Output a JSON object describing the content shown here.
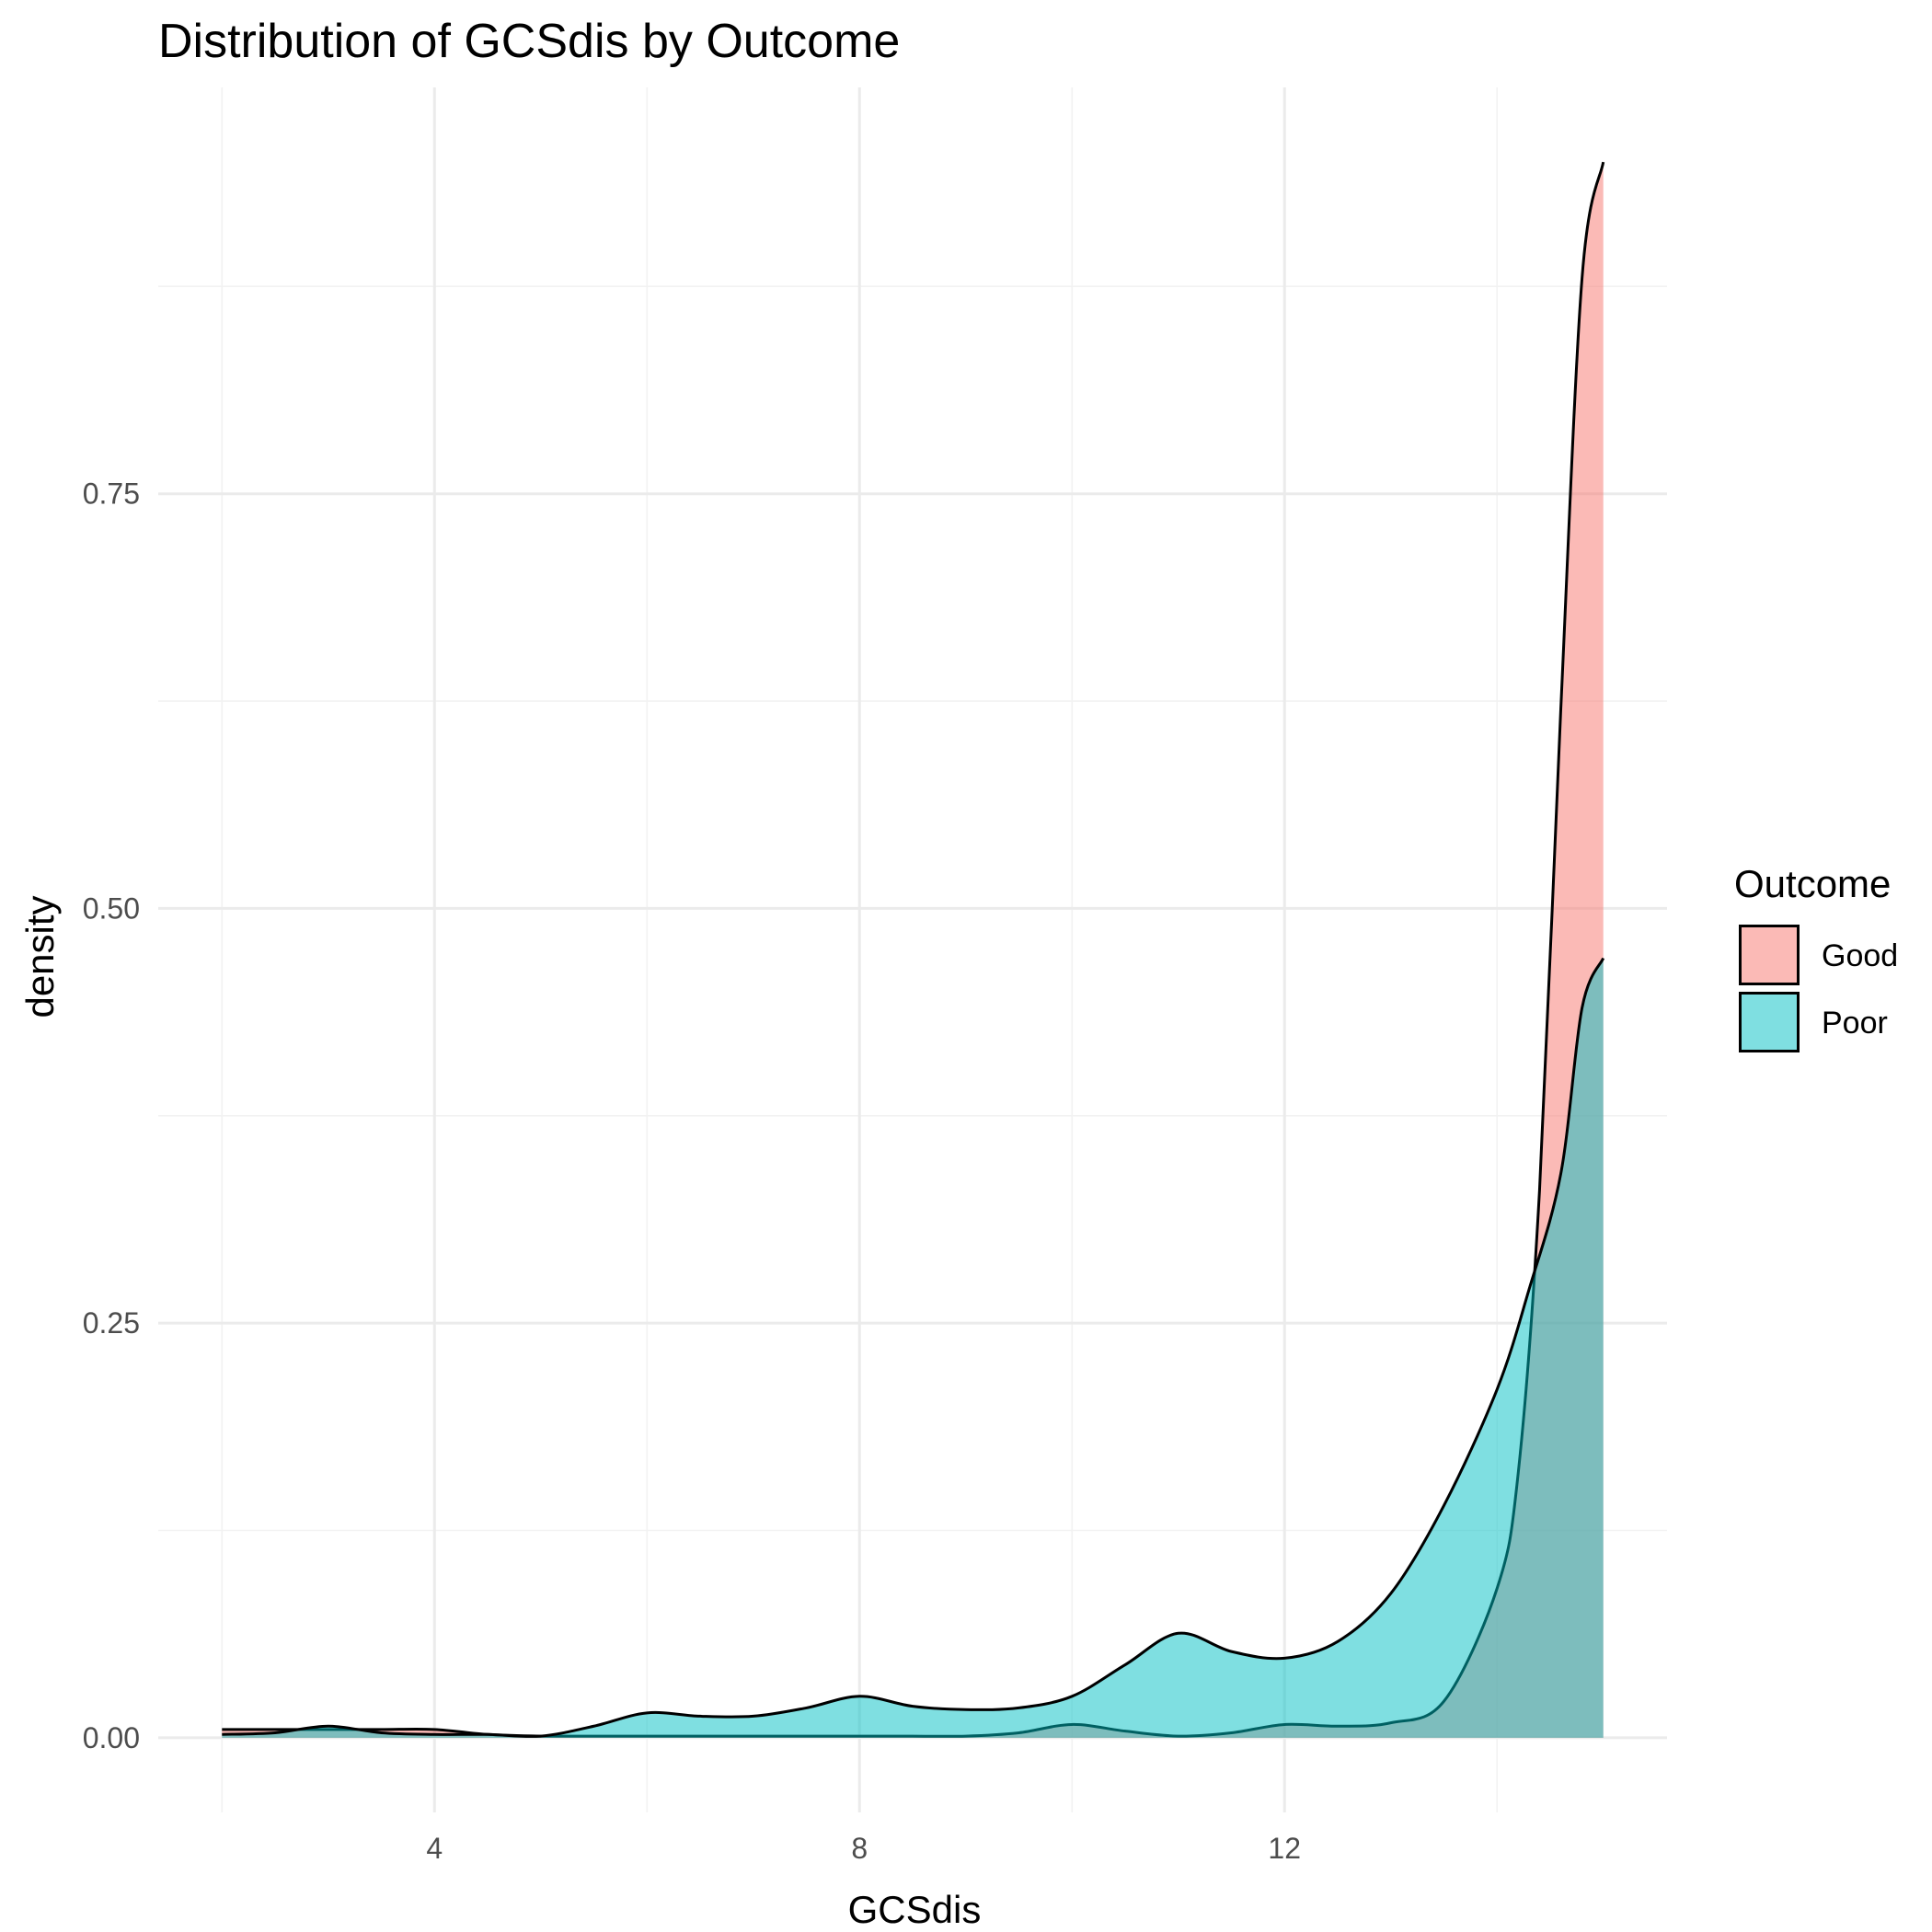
{
  "chart_data": {
    "type": "area",
    "title": "Distribution of GCSdis by Outcome",
    "xlabel": "GCSdis",
    "ylabel": "density",
    "xlim": [
      1.4,
      15.6
    ],
    "ylim": [
      -0.045,
      0.995
    ],
    "x_ticks": [
      4,
      8,
      12
    ],
    "x_tick_labels": [
      "4",
      "8",
      "12"
    ],
    "y_ticks": [
      0,
      0.25,
      0.5,
      0.75
    ],
    "y_tick_labels": [
      "0.00",
      "0.25",
      "0.50",
      "0.75"
    ],
    "grid": true,
    "legend": {
      "title": "Outcome",
      "position": "right"
    },
    "series": [
      {
        "name": "Good",
        "color": "#F8766D",
        "x": [
          2,
          2.5,
          3,
          3.5,
          4,
          4.5,
          5,
          5.5,
          6,
          6.5,
          7,
          7.5,
          8,
          8.5,
          9,
          9.5,
          10,
          10.5,
          11,
          11.5,
          12,
          12.5,
          13,
          13.5,
          14,
          14.2,
          14.4,
          14.6,
          14.8,
          15
        ],
        "y": [
          0.005,
          0.005,
          0.005,
          0.005,
          0.005,
          0.002,
          0.001,
          0.001,
          0.001,
          0.001,
          0.001,
          0.001,
          0.001,
          0.001,
          0.001,
          0.003,
          0.008,
          0.004,
          0.001,
          0.003,
          0.008,
          0.007,
          0.009,
          0.022,
          0.09,
          0.16,
          0.33,
          0.62,
          0.88,
          0.95
        ]
      },
      {
        "name": "Poor",
        "color": "#00BFC4",
        "x": [
          2,
          2.5,
          3,
          3.5,
          4,
          4.5,
          5,
          5.5,
          6,
          6.5,
          7,
          7.5,
          8,
          8.5,
          9,
          9.5,
          10,
          10.5,
          11,
          11.5,
          12,
          12.5,
          13,
          13.5,
          14,
          14.3,
          14.6,
          14.8,
          15
        ],
        "y": [
          0.002,
          0.003,
          0.007,
          0.003,
          0.002,
          0.002,
          0.001,
          0.007,
          0.015,
          0.013,
          0.013,
          0.018,
          0.025,
          0.019,
          0.017,
          0.018,
          0.025,
          0.044,
          0.063,
          0.052,
          0.048,
          0.058,
          0.087,
          0.14,
          0.21,
          0.27,
          0.34,
          0.44,
          0.47
        ]
      }
    ]
  }
}
